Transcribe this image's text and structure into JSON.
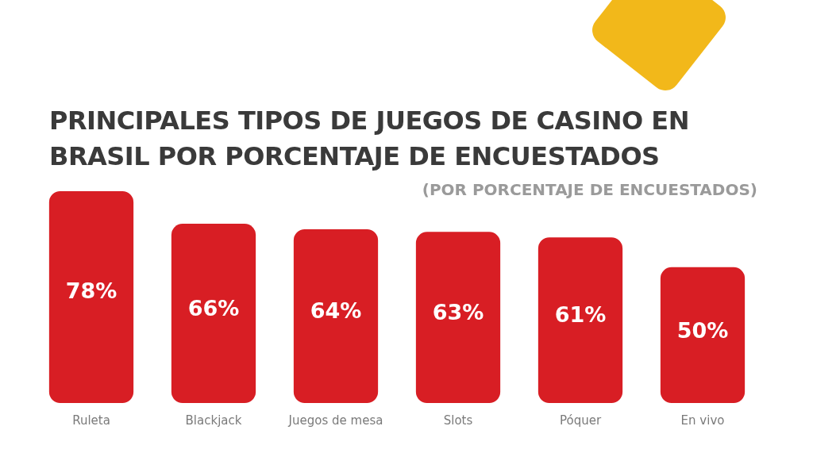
{
  "chart_data": {
    "type": "bar",
    "title": "PRINCIPALES TIPOS DE JUEGOS DE CASINO EN BRASIL POR PORCENTAJE DE ENCUESTADOS",
    "subtitle": "(POR PORCENTAJE DE ENCUESTADOS)",
    "categories": [
      "Ruleta",
      "Blackjack",
      "Juegos de mesa",
      "Slots",
      "Póquer",
      "En vivo"
    ],
    "values": [
      78,
      66,
      64,
      63,
      61,
      50
    ],
    "value_labels": [
      "78%",
      "66%",
      "64%",
      "63%",
      "61%",
      "50%"
    ],
    "color": "#d81e24",
    "ylim": [
      0,
      78
    ]
  }
}
